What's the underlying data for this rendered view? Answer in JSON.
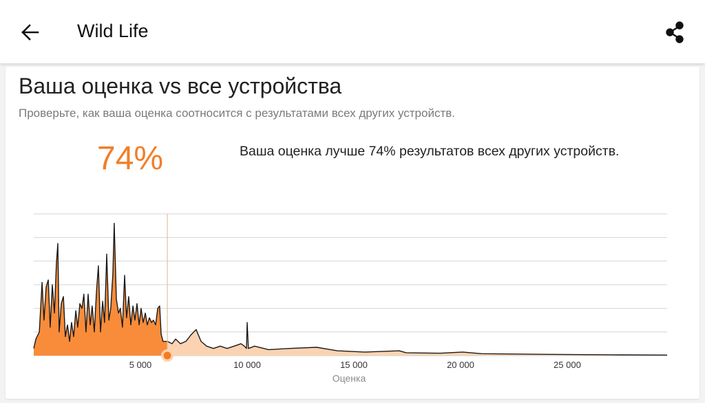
{
  "header": {
    "title": "Wild Life"
  },
  "card": {
    "title": "Ваша оценка vs все устройства",
    "subtitle": "Проверьте, как ваша оценка соотносится с результатами всех других устройств.",
    "percentile": "74%",
    "sentence": "Ваша оценка лучше 74% результатов всех других устройств."
  },
  "chart_data": {
    "type": "area",
    "x_label": "Оценка",
    "xlim": [
      0,
      29680
    ],
    "ylim": [
      0,
      6
    ],
    "xticks": [
      {
        "value": 5000,
        "label": "5 000"
      },
      {
        "value": 10000,
        "label": "10 000"
      },
      {
        "value": 15000,
        "label": "15 000"
      },
      {
        "value": 20000,
        "label": "20 000"
      },
      {
        "value": 25000,
        "label": "25 000"
      }
    ],
    "yticks": [
      1,
      2,
      3,
      4,
      5,
      6
    ],
    "grid": true,
    "user_score": 6260,
    "colors": {
      "below": "#f98c3a",
      "above": "#fbd3b2",
      "line": "#1a1a1a",
      "marker": "#f57c20"
    },
    "x": [
      0,
      100,
      260,
      390,
      480,
      580,
      680,
      770,
      870,
      970,
      1060,
      1130,
      1190,
      1290,
      1390,
      1480,
      1580,
      1680,
      1770,
      1870,
      1970,
      2060,
      2160,
      2260,
      2350,
      2450,
      2550,
      2650,
      2740,
      2840,
      2940,
      3030,
      3130,
      3230,
      3320,
      3420,
      3520,
      3610,
      3710,
      3770,
      3870,
      3970,
      4060,
      4160,
      4260,
      4350,
      4450,
      4550,
      4650,
      4740,
      4840,
      4940,
      5030,
      5130,
      5230,
      5320,
      5420,
      5520,
      5610,
      5710,
      5810,
      5900,
      5970,
      6060,
      6260,
      6480,
      6650,
      6870,
      7130,
      7390,
      7610,
      7840,
      8100,
      8420,
      8740,
      9060,
      9390,
      9710,
      9870,
      9970,
      10000,
      10060,
      10350,
      11000,
      11970,
      13260,
      14230,
      15520,
      17130,
      17450,
      19060,
      20100,
      21000,
      24230,
      27450,
      29680
    ],
    "values": [
      0.3,
      0.7,
      1.0,
      3.1,
      1.5,
      2.9,
      3.2,
      1.2,
      3.0,
      1.8,
      3.9,
      4.75,
      1.0,
      2.2,
      2.5,
      0.8,
      1.3,
      0.6,
      1.4,
      0.8,
      1.9,
      1.2,
      2.2,
      2.0,
      2.6,
      1.0,
      2.6,
      1.3,
      2.1,
      1.0,
      2.7,
      3.8,
      1.0,
      2.3,
      1.4,
      4.3,
      1.5,
      2.0,
      3.5,
      5.6,
      2.4,
      1.8,
      2.0,
      1.2,
      3.4,
      1.6,
      2.5,
      1.3,
      2.1,
      1.5,
      2.2,
      1.3,
      2.0,
      1.4,
      1.8,
      1.3,
      1.6,
      1.4,
      1.5,
      1.3,
      2.0,
      2.1,
      0.9,
      0.6,
      0.6,
      0.5,
      0.7,
      0.5,
      0.6,
      0.9,
      1.1,
      0.6,
      0.4,
      0.3,
      0.4,
      0.3,
      0.4,
      0.5,
      0.4,
      0.3,
      1.4,
      0.3,
      0.4,
      0.25,
      0.3,
      0.35,
      0.2,
      0.15,
      0.2,
      0.12,
      0.1,
      0.15,
      0.08,
      0.05,
      0.03,
      0.02
    ]
  }
}
